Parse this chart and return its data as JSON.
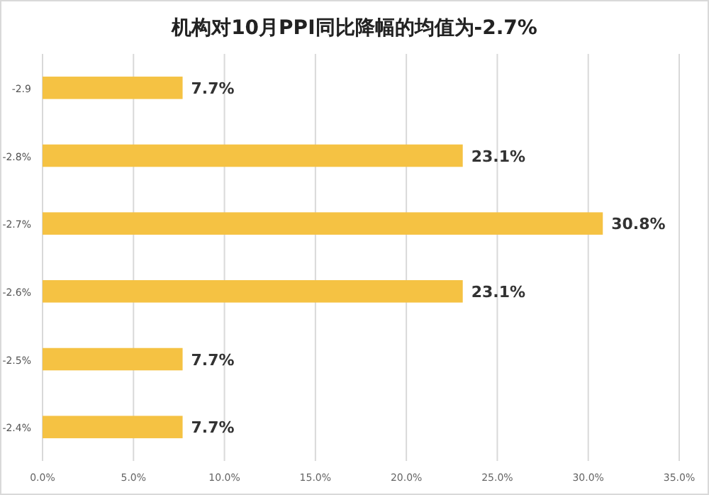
{
  "chart_data": {
    "type": "bar",
    "orientation": "horizontal",
    "title": "机构对10月PPI同比降幅的均值为-2.7%",
    "categories": [
      "-2.9",
      "-2.8%",
      "-2.7%",
      "-2.6%",
      "-2.5%",
      "-2.4%"
    ],
    "values": [
      7.7,
      23.1,
      30.8,
      23.1,
      7.7,
      7.7
    ],
    "value_labels": [
      "7.7%",
      "23.1%",
      "30.8%",
      "23.1%",
      "7.7%",
      "7.7%"
    ],
    "color": "#f5c243",
    "xlim": [
      0,
      35
    ],
    "xticks": [
      {
        "value": 0,
        "label": "0.0%"
      },
      {
        "value": 5,
        "label": "5.0%"
      },
      {
        "value": 10,
        "label": "10.0%"
      },
      {
        "value": 15,
        "label": "15.0%"
      },
      {
        "value": 20,
        "label": "20.0%"
      },
      {
        "value": 25,
        "label": "25.0%"
      },
      {
        "value": 30,
        "label": "30.0%"
      },
      {
        "value": 35,
        "label": "35.0%"
      }
    ],
    "grid": "x"
  }
}
